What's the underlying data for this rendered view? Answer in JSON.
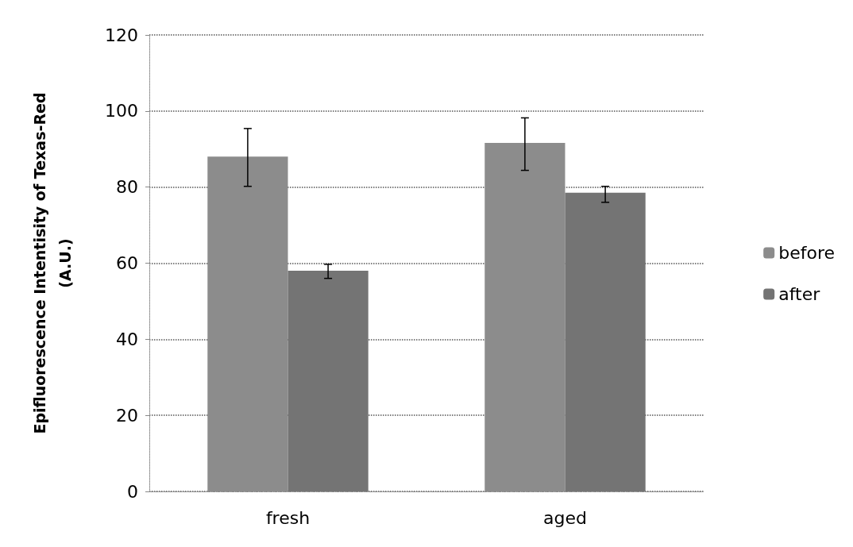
{
  "chart_data": {
    "type": "bar",
    "ylabel": "Epifluorescence Intentisity of Texas-Red\n(A.U.)",
    "categories": [
      "fresh",
      "aged"
    ],
    "series": [
      {
        "name": "before",
        "color": "#8c8c8c",
        "values": [
          88,
          91.6
        ],
        "errors": [
          [
            80.2,
            95.4
          ],
          [
            84.4,
            98.2
          ]
        ]
      },
      {
        "name": "after",
        "color": "#747474",
        "values": [
          58,
          78.5
        ],
        "errors": [
          [
            56,
            59.7
          ],
          [
            76,
            80.2
          ]
        ]
      }
    ],
    "ylim": [
      0,
      120
    ],
    "yticks": [
      0,
      20,
      40,
      60,
      80,
      100,
      120
    ],
    "grid": "y",
    "legend": "right"
  }
}
